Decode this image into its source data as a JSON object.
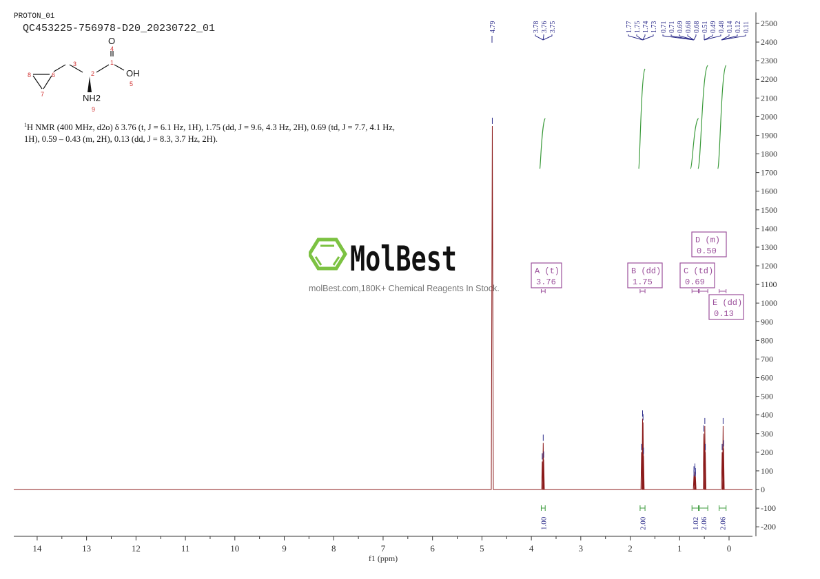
{
  "header": {
    "experiment": "PROTON_01",
    "sample_id": "QC453225-756978-D20_20230722_01"
  },
  "structure": {
    "atoms": [
      "O",
      "OH",
      "NH2"
    ],
    "atom_numbers": [
      "1",
      "2",
      "3",
      "4",
      "5",
      "6",
      "7",
      "8",
      "9"
    ]
  },
  "description": {
    "sup": "1",
    "text": "H NMR (400 MHz, d2o) δ 3.76 (t, J = 6.1 Hz, 1H), 1.75 (dd, J = 9.6, 4.3 Hz, 2H), 0.69 (td, J = 7.7, 4.1 Hz, 1H), 0.59 – 0.43 (m, 2H), 0.13 (dd, J = 8.3, 3.7 Hz, 2H)."
  },
  "watermark": {
    "logo_text": "MolBest",
    "tagline": "molBest.com,180K+ Chemical Reagents In Stock.",
    "logo_color": "#7cc242"
  },
  "colors": {
    "spectrum": "#8b1a1a",
    "peak_labels": "#2b2b8a",
    "integrals": "#3a9a3a",
    "multiplet_boxes": "#9b4f9b"
  },
  "chart_data": {
    "type": "line",
    "xlabel": "f1 (ppm)",
    "xlim": [
      14.5,
      -0.5
    ],
    "x_reversed": true,
    "ylim": [
      -250,
      2550
    ],
    "x_ticks": [
      "14",
      "13",
      "12",
      "11",
      "10",
      "9",
      "8",
      "7",
      "6",
      "5",
      "4",
      "3",
      "2",
      "1",
      "0"
    ],
    "y_ticks": [
      "2500",
      "2400",
      "2300",
      "2200",
      "2100",
      "2000",
      "1900",
      "1800",
      "1700",
      "1600",
      "1500",
      "1400",
      "1300",
      "1200",
      "1100",
      "1000",
      "900",
      "800",
      "700",
      "600",
      "500",
      "400",
      "300",
      "200",
      "100",
      "0",
      "-100",
      "-200"
    ],
    "grid": false,
    "peaks": [
      {
        "ppm": 4.79,
        "height": 1950,
        "label": "4.79"
      },
      {
        "ppm": 3.78,
        "height": 150,
        "label": "3.78"
      },
      {
        "ppm": 3.76,
        "height": 250,
        "label": "3.76"
      },
      {
        "ppm": 3.75,
        "height": 160,
        "label": "3.75"
      },
      {
        "ppm": 1.77,
        "height": 200,
        "label": "1.77"
      },
      {
        "ppm": 1.75,
        "height": 380,
        "label": "1.75"
      },
      {
        "ppm": 1.74,
        "height": 360,
        "label": "1.74"
      },
      {
        "ppm": 1.73,
        "height": 180,
        "label": "1.73"
      },
      {
        "ppm": 0.71,
        "height": 60,
        "label": "0.71"
      },
      {
        "ppm": 0.71,
        "height": 80,
        "label": "0.71"
      },
      {
        "ppm": 0.69,
        "height": 95,
        "label": "0.69"
      },
      {
        "ppm": 0.68,
        "height": 70,
        "label": "0.68"
      },
      {
        "ppm": 0.68,
        "height": 60,
        "label": "0.68"
      },
      {
        "ppm": 0.51,
        "height": 300,
        "label": "0.51"
      },
      {
        "ppm": 0.49,
        "height": 340,
        "label": "0.49"
      },
      {
        "ppm": 0.48,
        "height": 200,
        "label": "0.48"
      },
      {
        "ppm": 0.14,
        "height": 200,
        "label": "0.14"
      },
      {
        "ppm": 0.12,
        "height": 340,
        "label": "0.12"
      },
      {
        "ppm": 0.11,
        "height": 220,
        "label": "0.11"
      }
    ],
    "multiplets": [
      {
        "letter": "A",
        "type": "(t)",
        "shift": "3.76",
        "range": [
          3.8,
          3.72
        ]
      },
      {
        "letter": "B",
        "type": "(dd)",
        "shift": "1.75",
        "range": [
          1.8,
          1.7
        ]
      },
      {
        "letter": "C",
        "type": "(td)",
        "shift": "0.69",
        "range": [
          0.75,
          0.62
        ]
      },
      {
        "letter": "D",
        "type": "(m)",
        "shift": "0.50",
        "range": [
          0.6,
          0.43
        ]
      },
      {
        "letter": "E",
        "type": "(dd)",
        "shift": "0.13",
        "range": [
          0.2,
          0.06
        ]
      }
    ],
    "integrals": [
      {
        "range": [
          3.8,
          3.72
        ],
        "value": "1.00"
      },
      {
        "range": [
          1.8,
          1.7
        ],
        "value": "2.00"
      },
      {
        "range": [
          0.75,
          0.62
        ],
        "value": "1.02"
      },
      {
        "range": [
          0.6,
          0.43
        ],
        "value": "2.06"
      },
      {
        "range": [
          0.2,
          0.06
        ],
        "value": "2.06"
      }
    ]
  }
}
